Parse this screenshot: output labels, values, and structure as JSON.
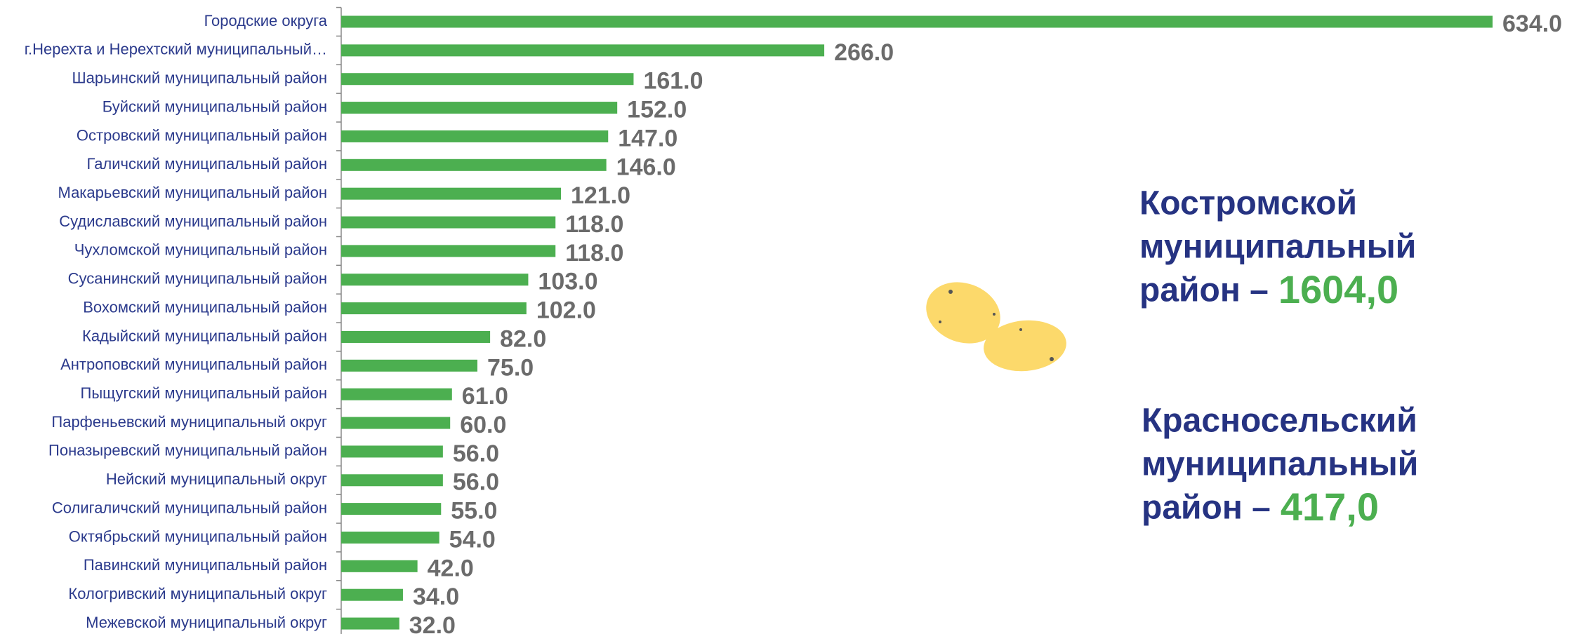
{
  "chart_data": {
    "type": "bar",
    "orientation": "horizontal",
    "color": "#4caf50",
    "categories": [
      "Городские округа",
      "г.Нерехта и Нерехтский муниципальный…",
      "Шарьинский муниципальный район",
      "Буйский муниципальный район",
      "Островский муниципальный район",
      "Галичский муниципальный район",
      "Макарьевский муниципальный район",
      "Судиславский муниципальный район",
      "Чухломской муниципальный район",
      "Сусанинский муниципальный район",
      "Вохомский муниципальный район",
      "Кадыйский муниципальный район",
      "Антроповский муниципальный район",
      "Пыщугский муниципальный район",
      "Парфеньевский муниципальный округ",
      "Поназыревский муниципальный район",
      "Нейский муниципальный округ",
      "Солигаличский муниципальный район",
      "Октябрьский муниципальный район",
      "Павинский муниципальный район",
      "Кологривский муниципальный округ",
      "Межевской муниципальный округ"
    ],
    "values": [
      634,
      266,
      161,
      152,
      147,
      146,
      121,
      118,
      118,
      103,
      102,
      82,
      75,
      61,
      60,
      56,
      56,
      55,
      54,
      42,
      34,
      32
    ],
    "value_labels": [
      "634.0",
      "266.0",
      "161.0",
      "152.0",
      "147.0",
      "146.0",
      "121.0",
      "118.0",
      "118.0",
      "103.0",
      "102.0",
      "82.0",
      "75.0",
      "61.0",
      "60.0",
      "56.0",
      "56.0",
      "55.0",
      "54.0",
      "42.0",
      "34.0",
      "32.0"
    ]
  },
  "annotations": [
    {
      "lines": [
        "Костромской",
        "муниципальный",
        "район –"
      ],
      "value_label": "1604,0"
    },
    {
      "lines": [
        "Красносельский",
        "муниципальный",
        "район –"
      ],
      "value_label": "417,0"
    }
  ]
}
